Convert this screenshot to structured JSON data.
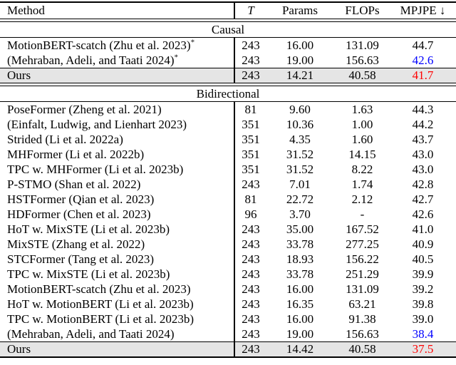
{
  "header": {
    "columns": [
      "Method",
      "T",
      "Params",
      "FLOPs",
      "MPJPE ↓"
    ]
  },
  "colors": {
    "blue": "#0000ff",
    "red": "#ff0000",
    "ours_row_bg": "#e5e5e5",
    "rule_black": "#000000"
  },
  "sections": [
    {
      "title": "Causal",
      "rows": [
        {
          "method": "MotionBERT-scatch (Zhu et al. 2023)",
          "superscript": "*",
          "t": "243",
          "params": "16.00",
          "flops": "131.09",
          "mpjpe": "44.7",
          "mpjpe_color": "",
          "ours": false
        },
        {
          "method": "(Mehraban, Adeli, and Taati 2024)",
          "superscript": "*",
          "t": "243",
          "params": "19.00",
          "flops": "156.63",
          "mpjpe": "42.6",
          "mpjpe_color": "blue",
          "ours": false
        },
        {
          "method": "Ours",
          "superscript": "",
          "t": "243",
          "params": "14.21",
          "flops": "40.58",
          "mpjpe": "41.7",
          "mpjpe_color": "red",
          "ours": true
        }
      ]
    },
    {
      "title": "Bidirectional",
      "rows": [
        {
          "method": "PoseFormer (Zheng et al. 2021)",
          "superscript": "",
          "t": "81",
          "params": "9.60",
          "flops": "1.63",
          "mpjpe": "44.3",
          "mpjpe_color": "",
          "ours": false
        },
        {
          "method": "(Einfalt, Ludwig, and Lienhart 2023)",
          "superscript": "",
          "t": "351",
          "params": "10.36",
          "flops": "1.00",
          "mpjpe": "44.2",
          "mpjpe_color": "",
          "ours": false
        },
        {
          "method": "Strided (Li et al. 2022a)",
          "superscript": "",
          "t": "351",
          "params": "4.35",
          "flops": "1.60",
          "mpjpe": "43.7",
          "mpjpe_color": "",
          "ours": false
        },
        {
          "method": "MHFormer (Li et al. 2022b)",
          "superscript": "",
          "t": "351",
          "params": "31.52",
          "flops": "14.15",
          "mpjpe": "43.0",
          "mpjpe_color": "",
          "ours": false
        },
        {
          "method": "TPC w. MHFormer (Li et al. 2023b)",
          "superscript": "",
          "t": "351",
          "params": "31.52",
          "flops": "8.22",
          "mpjpe": "43.0",
          "mpjpe_color": "",
          "ours": false
        },
        {
          "method": "P-STMO (Shan et al. 2022)",
          "superscript": "",
          "t": "243",
          "params": "7.01",
          "flops": "1.74",
          "mpjpe": "42.8",
          "mpjpe_color": "",
          "ours": false
        },
        {
          "method": "HSTFormer (Qian et al. 2023)",
          "superscript": "",
          "t": "81",
          "params": "22.72",
          "flops": "2.12",
          "mpjpe": "42.7",
          "mpjpe_color": "",
          "ours": false
        },
        {
          "method": "HDFormer (Chen et al. 2023)",
          "superscript": "",
          "t": "96",
          "params": "3.70",
          "flops": "-",
          "mpjpe": "42.6",
          "mpjpe_color": "",
          "ours": false
        },
        {
          "method": "HoT w. MixSTE (Li et al. 2023b)",
          "superscript": "",
          "t": "243",
          "params": "35.00",
          "flops": "167.52",
          "mpjpe": "41.0",
          "mpjpe_color": "",
          "ours": false
        },
        {
          "method": "MixSTE (Zhang et al. 2022)",
          "superscript": "",
          "t": "243",
          "params": "33.78",
          "flops": "277.25",
          "mpjpe": "40.9",
          "mpjpe_color": "",
          "ours": false
        },
        {
          "method": "STCFormer (Tang et al. 2023)",
          "superscript": "",
          "t": "243",
          "params": "18.93",
          "flops": "156.22",
          "mpjpe": "40.5",
          "mpjpe_color": "",
          "ours": false
        },
        {
          "method": "TPC w. MixSTE (Li et al. 2023b)",
          "superscript": "",
          "t": "243",
          "params": "33.78",
          "flops": "251.29",
          "mpjpe": "39.9",
          "mpjpe_color": "",
          "ours": false
        },
        {
          "method": "MotionBERT-scatch (Zhu et al. 2023)",
          "superscript": "",
          "t": "243",
          "params": "16.00",
          "flops": "131.09",
          "mpjpe": "39.2",
          "mpjpe_color": "",
          "ours": false
        },
        {
          "method": "HoT w. MotionBERT (Li et al. 2023b)",
          "superscript": "",
          "t": "243",
          "params": "16.35",
          "flops": "63.21",
          "mpjpe": "39.8",
          "mpjpe_color": "",
          "ours": false
        },
        {
          "method": "TPC w. MotionBERT (Li et al. 2023b)",
          "superscript": "",
          "t": "243",
          "params": "16.00",
          "flops": "91.38",
          "mpjpe": "39.0",
          "mpjpe_color": "",
          "ours": false
        },
        {
          "method": "(Mehraban, Adeli, and Taati 2024)",
          "superscript": "",
          "t": "243",
          "params": "19.00",
          "flops": "156.63",
          "mpjpe": "38.4",
          "mpjpe_color": "blue",
          "ours": false
        },
        {
          "method": "Ours",
          "superscript": "",
          "t": "243",
          "params": "14.42",
          "flops": "40.58",
          "mpjpe": "37.5",
          "mpjpe_color": "red",
          "ours": true
        }
      ]
    }
  ]
}
